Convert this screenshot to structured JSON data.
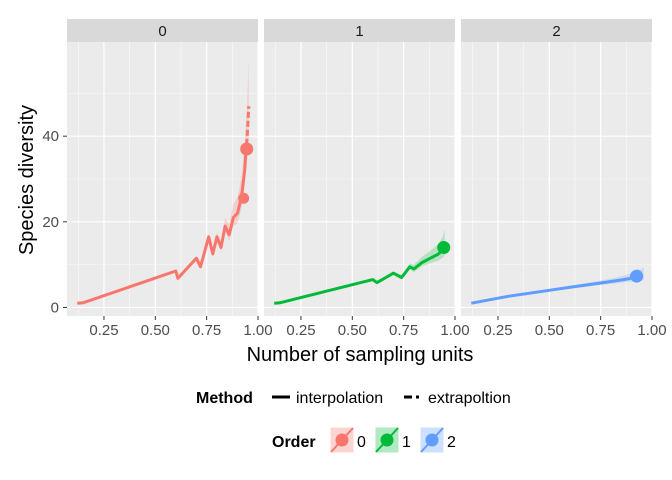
{
  "chart_data": {
    "type": "line",
    "facet_variable": "Order",
    "facets": [
      {
        "label": "0",
        "color": "#F8766D",
        "interpolation": [
          [
            0.12,
            1
          ],
          [
            0.15,
            1.1
          ],
          [
            0.6,
            8.5
          ],
          [
            0.61,
            6.8
          ],
          [
            0.7,
            11.5
          ],
          [
            0.72,
            9.5
          ],
          [
            0.76,
            16.5
          ],
          [
            0.78,
            12.5
          ],
          [
            0.8,
            16.5
          ],
          [
            0.82,
            14
          ],
          [
            0.84,
            19
          ],
          [
            0.86,
            17
          ],
          [
            0.88,
            21
          ],
          [
            0.9,
            22
          ],
          [
            0.92,
            26
          ],
          [
            0.935,
            32
          ],
          [
            0.94,
            36
          ],
          [
            0.945,
            38
          ]
        ],
        "extrapolation": [
          [
            0.945,
            38
          ],
          [
            0.95,
            42
          ],
          [
            0.955,
            47
          ]
        ],
        "observed": {
          "x": 0.945,
          "y": 37
        },
        "extra_point": {
          "x": 0.93,
          "y": 25.5
        },
        "ci_upper_end": 58
      },
      {
        "label": "1",
        "color": "#00BA38",
        "interpolation": [
          [
            0.12,
            1
          ],
          [
            0.15,
            1.1
          ],
          [
            0.6,
            6.5
          ],
          [
            0.62,
            5.8
          ],
          [
            0.7,
            8
          ],
          [
            0.74,
            7
          ],
          [
            0.78,
            9.5
          ],
          [
            0.8,
            9
          ],
          [
            0.84,
            10.5
          ],
          [
            0.88,
            11.5
          ],
          [
            0.92,
            12.5
          ],
          [
            0.94,
            13.5
          ]
        ],
        "extrapolation": [
          [
            0.94,
            13.5
          ],
          [
            0.95,
            14.5
          ]
        ],
        "observed": {
          "x": 0.945,
          "y": 14
        },
        "ci_upper_end": 18
      },
      {
        "label": "2",
        "color": "#619CFF",
        "interpolation": [
          [
            0.12,
            1
          ],
          [
            0.3,
            2.6
          ],
          [
            0.5,
            4
          ],
          [
            0.6,
            4.7
          ],
          [
            0.75,
            5.7
          ],
          [
            0.85,
            6.4
          ],
          [
            0.92,
            7
          ]
        ],
        "extrapolation": [
          [
            0.92,
            7
          ],
          [
            0.96,
            7.5
          ]
        ],
        "observed": {
          "x": 0.925,
          "y": 7.3
        },
        "ci_upper_end": 9
      }
    ],
    "x_ticks": [
      "0.25",
      "0.50",
      "0.75",
      "1.00"
    ],
    "y_ticks": [
      "0",
      "20",
      "40"
    ],
    "xlim": [
      0.07,
      1.0
    ],
    "ylim": [
      -2,
      62
    ],
    "xlabel": "Number of sampling units",
    "ylabel": "Species diversity",
    "grid": true,
    "legend_position": "bottom",
    "legend": {
      "method_title": "Method",
      "method_items": [
        "interpolation",
        "extrapoltion"
      ],
      "order_title": "Order",
      "order_items": [
        "0",
        "1",
        "2"
      ]
    },
    "colors": {
      "panel_bg": "#EBEBEB",
      "grid": "#FFFFFF",
      "strip_bg": "#D9D9D9"
    }
  }
}
